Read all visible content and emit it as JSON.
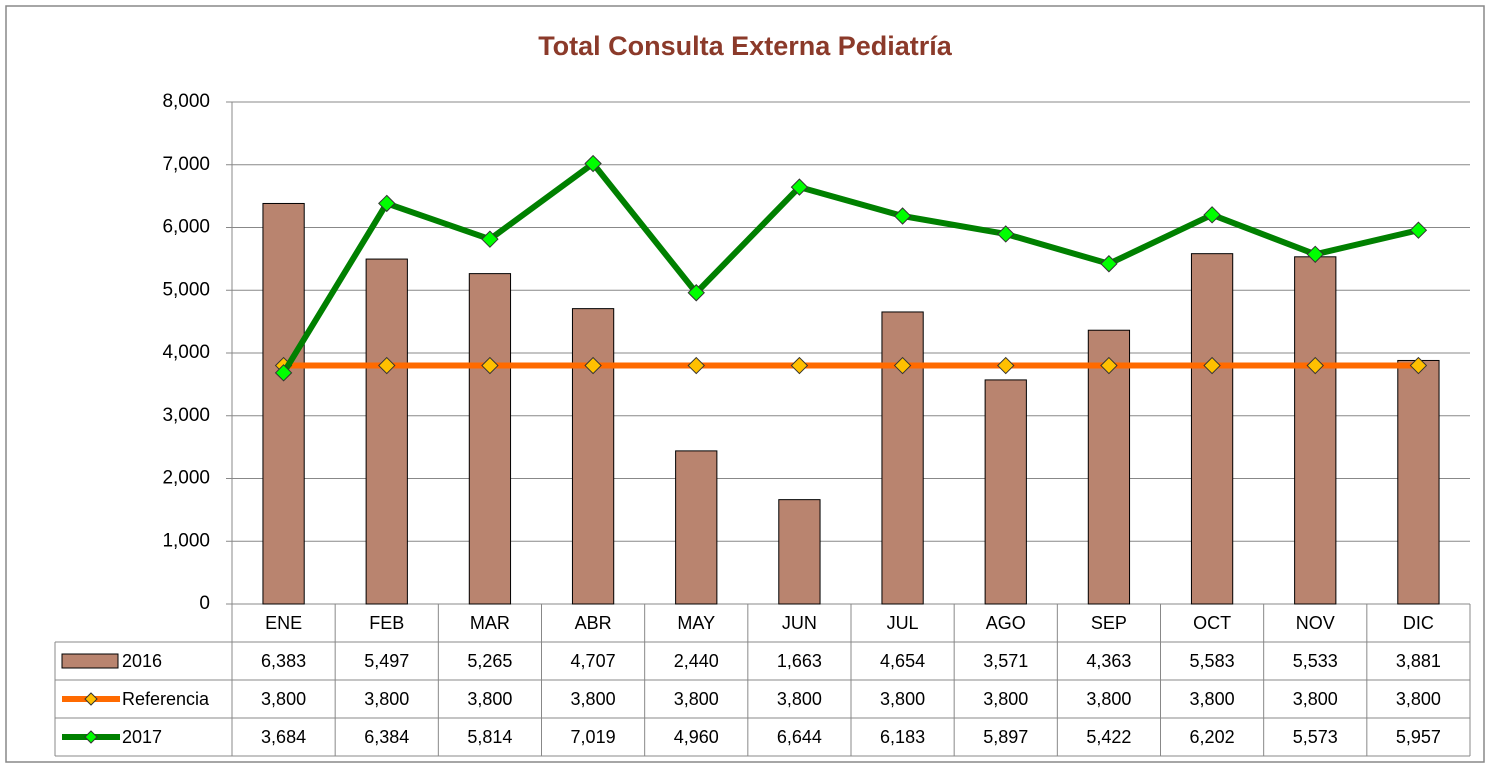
{
  "chart_data": {
    "type": "bar_line_table",
    "title": "Total Consulta Externa Pediatría",
    "categories": [
      "ENE",
      "FEB",
      "MAR",
      "ABR",
      "MAY",
      "JUN",
      "JUL",
      "AGO",
      "SEP",
      "OCT",
      "NOV",
      "DIC"
    ],
    "series": [
      {
        "name": "2016",
        "type": "bar",
        "color": "#b9846f",
        "values": [
          6383,
          5497,
          5265,
          4707,
          2440,
          1663,
          4654,
          3571,
          4363,
          5583,
          5533,
          3881
        ],
        "value_labels": [
          "6,383",
          "5,497",
          "5,265",
          "4,707",
          "2,440",
          "1,663",
          "4,654",
          "3,571",
          "4,363",
          "5,583",
          "5,533",
          "3,881"
        ]
      },
      {
        "name": "Referencia",
        "type": "line",
        "color": "#ff6a00",
        "marker_color": "#ffc000",
        "values": [
          3800,
          3800,
          3800,
          3800,
          3800,
          3800,
          3800,
          3800,
          3800,
          3800,
          3800,
          3800
        ],
        "value_labels": [
          "3,800",
          "3,800",
          "3,800",
          "3,800",
          "3,800",
          "3,800",
          "3,800",
          "3,800",
          "3,800",
          "3,800",
          "3,800",
          "3,800"
        ]
      },
      {
        "name": "2017",
        "type": "line",
        "color": "#008000",
        "marker_color": "#00ff00",
        "values": [
          3684,
          6384,
          5814,
          7019,
          4960,
          6644,
          6183,
          5897,
          5422,
          6202,
          5573,
          5957
        ],
        "value_labels": [
          "3,684",
          "6,384",
          "5,814",
          "7,019",
          "4,960",
          "6,644",
          "6,183",
          "5,897",
          "5,422",
          "6,202",
          "5,573",
          "5,957"
        ]
      }
    ],
    "ylim": [
      0,
      8000
    ],
    "yticks": [
      0,
      {
        "value": 1000,
        "label": "1,000"
      },
      {
        "value": 2000,
        "label": "2,000"
      },
      {
        "value": 3000,
        "label": "3,000"
      },
      {
        "value": 4000,
        "label": "4,000"
      },
      {
        "value": 5000,
        "label": "5,000"
      },
      {
        "value": 6000,
        "label": "6,000"
      },
      {
        "value": 7000,
        "label": "7,000"
      },
      {
        "value": 8000,
        "label": "8,000"
      }
    ],
    "grid": true
  }
}
